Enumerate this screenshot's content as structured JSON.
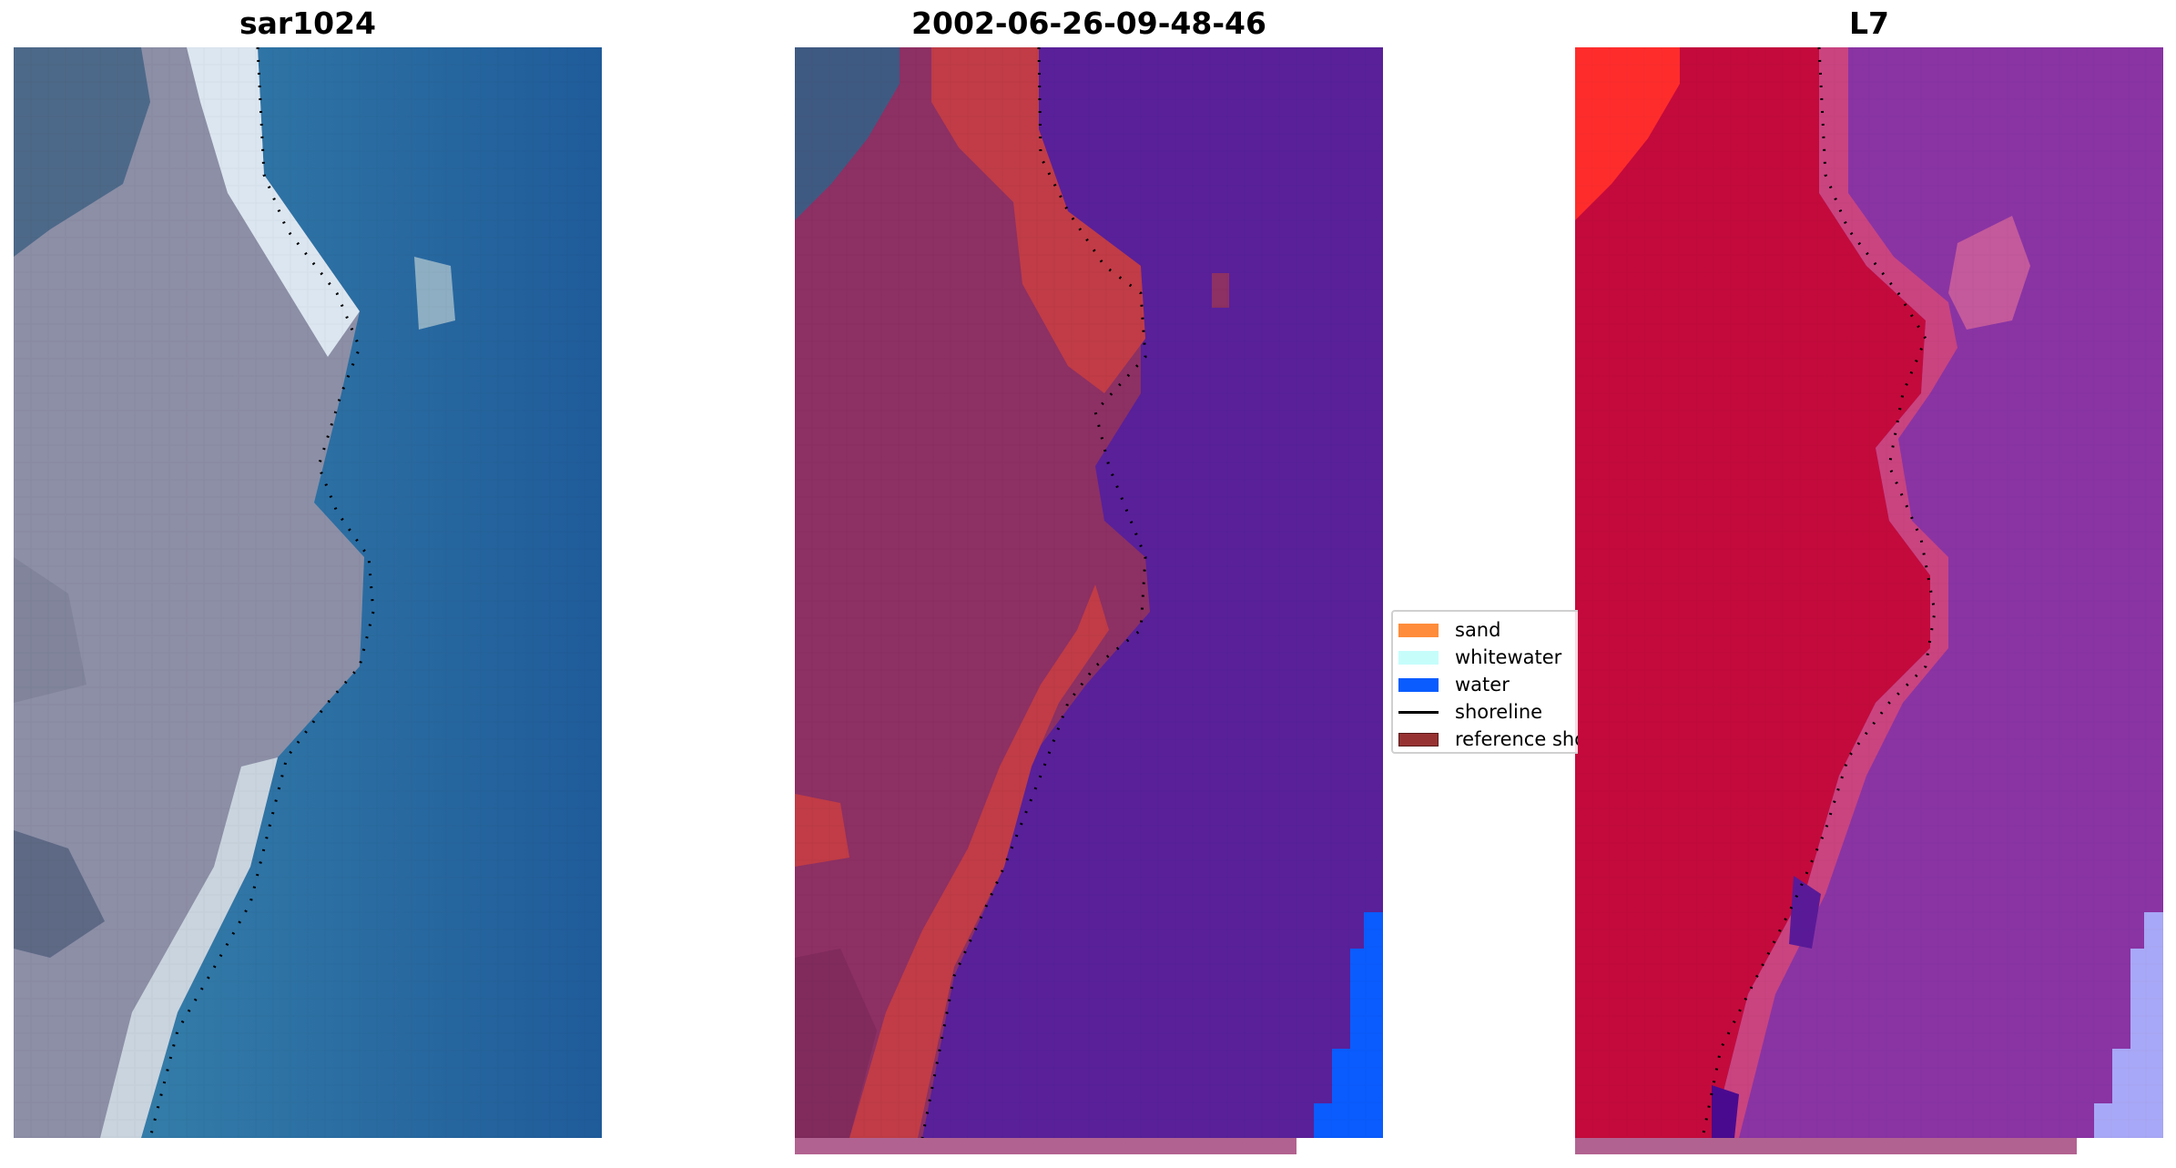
{
  "panels": [
    {
      "title": "sar1024",
      "icon": "satellite-rgb-image"
    },
    {
      "title": "2002-06-26-09-48-46",
      "icon": "classified-image"
    },
    {
      "title": "L7",
      "icon": "mndwi-image"
    }
  ],
  "legend": {
    "items": [
      {
        "label": "sand",
        "color": "#ff8c3a"
      },
      {
        "label": "whitewater",
        "color": "#c6fdfb"
      },
      {
        "label": "water",
        "color": "#0a5cff"
      },
      {
        "label": "shoreline",
        "color": "#000000"
      },
      {
        "label": "reference shoreline",
        "color": "#973232"
      }
    ]
  },
  "colors": {
    "water_rgb": "#2a6aa5",
    "land_rgb": "#8a8a9c",
    "classified_land": "#8d3064",
    "classified_sand": "#c13c46",
    "classified_water": "#59209a",
    "index_land": "#c40a3c",
    "index_water": "#8a34a4"
  }
}
